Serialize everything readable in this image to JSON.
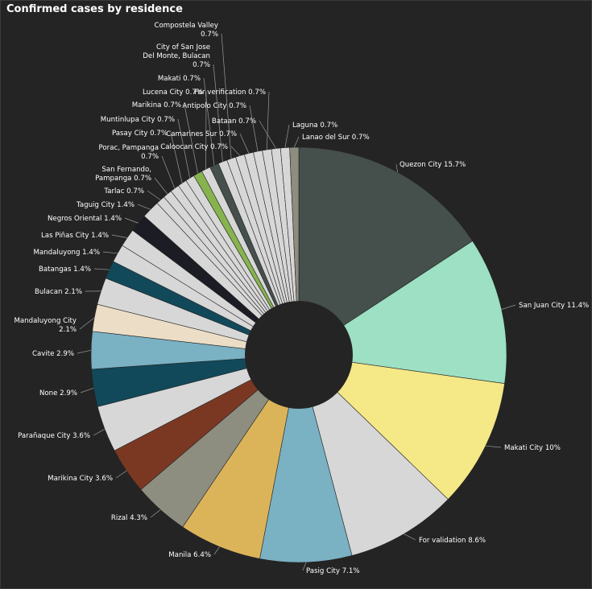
{
  "chart_data": {
    "type": "pie",
    "title": "Confirmed cases by residence",
    "donut": true,
    "start": "12 o'clock, clockwise",
    "slices": [
      {
        "label": "Quezon City",
        "value": 15.7,
        "pct": "15.7%",
        "color": "#454f4b"
      },
      {
        "label": "San Juan City",
        "value": 11.4,
        "pct": "11.4%",
        "color": "#9de0c3"
      },
      {
        "label": "Makati City",
        "value": 10,
        "pct": "10%",
        "color": "#f5e887"
      },
      {
        "label": "For validation",
        "value": 8.6,
        "pct": "8.6%",
        "color": "#d7d7d7"
      },
      {
        "label": "Pasig City",
        "value": 7.1,
        "pct": "7.1%",
        "color": "#7ab1c3"
      },
      {
        "label": "Manila",
        "value": 6.4,
        "pct": "6.4%",
        "color": "#dbb45a"
      },
      {
        "label": "Rizal",
        "value": 4.3,
        "pct": "4.3%",
        "color": "#8d8d80"
      },
      {
        "label": "Marikina City",
        "value": 3.6,
        "pct": "3.6%",
        "color": "#7a3823"
      },
      {
        "label": "Parañaque City",
        "value": 3.6,
        "pct": "3.6%",
        "color": "#d7d7d7"
      },
      {
        "label": "None",
        "value": 2.9,
        "pct": "2.9%",
        "color": "#11495a"
      },
      {
        "label": "Cavite",
        "value": 2.9,
        "pct": "2.9%",
        "color": "#7ab1c3"
      },
      {
        "label": "Mandaluyong City",
        "value": 2.1,
        "pct": "2.1%",
        "color": "#ecdec6"
      },
      {
        "label": "Bulacan",
        "value": 2.1,
        "pct": "2.1%",
        "color": "#d7d7d7"
      },
      {
        "label": "Batangas",
        "value": 1.4,
        "pct": "1.4%",
        "color": "#11495a"
      },
      {
        "label": "Mandaluyong",
        "value": 1.4,
        "pct": "1.4%",
        "color": "#d7d7d7"
      },
      {
        "label": "Las Piñas City",
        "value": 1.4,
        "pct": "1.4%",
        "color": "#d7d7d7"
      },
      {
        "label": "Negros Oriental",
        "value": 1.4,
        "pct": "1.4%",
        "color": "#1c1c24"
      },
      {
        "label": "Taguig City",
        "value": 1.4,
        "pct": "1.4%",
        "color": "#d7d7d7"
      },
      {
        "label": "Tarlac",
        "value": 0.7,
        "pct": "0.7%",
        "color": "#d7d7d7"
      },
      {
        "label": "San Fernando, Pampanga",
        "value": 0.7,
        "pct": "0.7%",
        "color": "#d7d7d7"
      },
      {
        "label": "Porac, Pampanga",
        "value": 0.7,
        "pct": "0.7%",
        "color": "#d7d7d7"
      },
      {
        "label": "Pasay City",
        "value": 0.7,
        "pct": "0.7%",
        "color": "#d7d7d7"
      },
      {
        "label": "Muntinlupa City",
        "value": 0.7,
        "pct": "0.7%",
        "color": "#d7d7d7"
      },
      {
        "label": "Marikina",
        "value": 0.7,
        "pct": "0.7%",
        "color": "#86b34e"
      },
      {
        "label": "Lucena City",
        "value": 0.7,
        "pct": "0.7%",
        "color": "#d7d7d7"
      },
      {
        "label": "Makati",
        "value": 0.7,
        "pct": "0.7%",
        "color": "#454f4b"
      },
      {
        "label": "City of San Jose Del Monte, Bulacan",
        "value": 0.7,
        "pct": "0.7%",
        "color": "#d7d7d7"
      },
      {
        "label": "Compostela Valley",
        "value": 0.7,
        "pct": "0.7%",
        "color": "#d7d7d7"
      },
      {
        "label": "Caloocan City",
        "value": 0.7,
        "pct": "0.7%",
        "color": "#d7d7d7"
      },
      {
        "label": "Camarines Sur",
        "value": 0.7,
        "pct": "0.7%",
        "color": "#d7d7d7"
      },
      {
        "label": "Antipolo City",
        "value": 0.7,
        "pct": "0.7%",
        "color": "#d7d7d7"
      },
      {
        "label": "For verification",
        "value": 0.7,
        "pct": "0.7%",
        "color": "#d7d7d7"
      },
      {
        "label": "Bataan",
        "value": 0.7,
        "pct": "0.7%",
        "color": "#d7d7d7"
      },
      {
        "label": "Laguna",
        "value": 0.7,
        "pct": "0.7%",
        "color": "#d7d7d7"
      },
      {
        "label": "Lanao del Sur",
        "value": 0.7,
        "pct": "0.7%",
        "color": "#8d8d80"
      }
    ]
  }
}
